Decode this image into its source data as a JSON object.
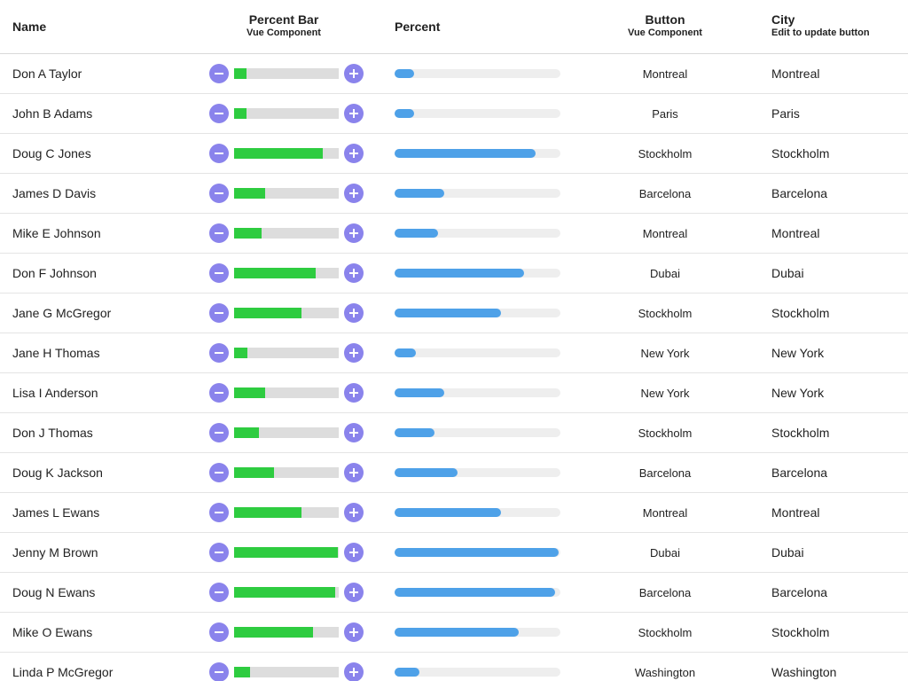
{
  "colors": {
    "accent_button": "#8a83ec",
    "percent_bar_fill": "#2ecc40",
    "percent_bar_track": "#dddddd",
    "percent_fill": "#4ea1e8",
    "percent_track": "#eeeeee"
  },
  "icons": {
    "decrement": "minus-icon",
    "increment": "plus-icon"
  },
  "columns": {
    "name": {
      "title": "Name"
    },
    "percent_bar": {
      "title": "Percent Bar",
      "subtitle": "Vue Component"
    },
    "percent": {
      "title": "Percent"
    },
    "button": {
      "title": "Button",
      "subtitle": "Vue Component"
    },
    "city": {
      "title": "City",
      "subtitle": "Edit to update button"
    }
  },
  "rows": [
    {
      "name": "Don A Taylor",
      "percent": 0.12,
      "button": "Montreal",
      "city": "Montreal"
    },
    {
      "name": "John B Adams",
      "percent": 0.12,
      "button": "Paris",
      "city": "Paris"
    },
    {
      "name": "Doug C Jones",
      "percent": 0.85,
      "button": "Stockholm",
      "city": "Stockholm"
    },
    {
      "name": "James D Davis",
      "percent": 0.3,
      "button": "Barcelona",
      "city": "Barcelona"
    },
    {
      "name": "Mike E Johnson",
      "percent": 0.26,
      "button": "Montreal",
      "city": "Montreal"
    },
    {
      "name": "Don F Johnson",
      "percent": 0.78,
      "button": "Dubai",
      "city": "Dubai"
    },
    {
      "name": "Jane G McGregor",
      "percent": 0.64,
      "button": "Stockholm",
      "city": "Stockholm"
    },
    {
      "name": "Jane H Thomas",
      "percent": 0.13,
      "button": "New York",
      "city": "New York"
    },
    {
      "name": "Lisa I Anderson",
      "percent": 0.3,
      "button": "New York",
      "city": "New York"
    },
    {
      "name": "Don J Thomas",
      "percent": 0.24,
      "button": "Stockholm",
      "city": "Stockholm"
    },
    {
      "name": "Doug K Jackson",
      "percent": 0.38,
      "button": "Barcelona",
      "city": "Barcelona"
    },
    {
      "name": "James L Ewans",
      "percent": 0.64,
      "button": "Montreal",
      "city": "Montreal"
    },
    {
      "name": "Jenny M Brown",
      "percent": 0.99,
      "button": "Dubai",
      "city": "Dubai"
    },
    {
      "name": "Doug N Ewans",
      "percent": 0.97,
      "button": "Barcelona",
      "city": "Barcelona"
    },
    {
      "name": "Mike O Ewans",
      "percent": 0.75,
      "button": "Stockholm",
      "city": "Stockholm"
    },
    {
      "name": "Linda P McGregor",
      "percent": 0.15,
      "button": "Washington",
      "city": "Washington"
    }
  ]
}
